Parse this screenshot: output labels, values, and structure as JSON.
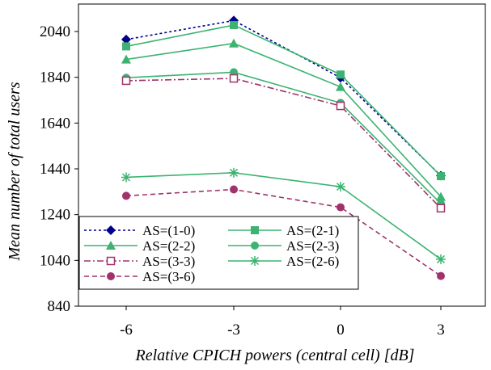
{
  "chart_data": {
    "type": "line",
    "title": "",
    "xlabel": "Relative CPICH powers (central cell) [dB]",
    "ylabel": "Mean number of total users",
    "x": [
      -6,
      -3,
      0,
      3
    ],
    "x_tick_labels": [
      "-6",
      "-3",
      "0",
      "3"
    ],
    "y_tick_labels": [
      "840",
      "1040",
      "1240",
      "1440",
      "1640",
      "1840",
      "2040"
    ],
    "y_ticks": [
      840,
      1040,
      1240,
      1440,
      1640,
      1840,
      2040
    ],
    "ylim": [
      840,
      2160
    ],
    "grid": false,
    "legend_position": "bottom-left",
    "series": [
      {
        "name": "AS=(1-0)",
        "values": [
          2005,
          2088,
          1838,
          1410
        ],
        "color": "#00008b",
        "dash": "dot",
        "marker": "diamond"
      },
      {
        "name": "AS=(2-1)",
        "values": [
          1975,
          2068,
          1852,
          1408
        ],
        "color": "#3cb371",
        "dash": "solid",
        "marker": "square"
      },
      {
        "name": "AS=(2-2)",
        "values": [
          1918,
          1988,
          1798,
          1318
        ],
        "color": "#3cb371",
        "dash": "solid",
        "marker": "triangle"
      },
      {
        "name": "AS=(2-3)",
        "values": [
          1838,
          1862,
          1728,
          1288
        ],
        "color": "#3cb371",
        "dash": "solid",
        "marker": "circle"
      },
      {
        "name": "AS=(3-3)",
        "values": [
          1825,
          1835,
          1715,
          1268
        ],
        "color": "#a0336b",
        "dash": "dashdot",
        "marker": "square-open"
      },
      {
        "name": "AS=(2-6)",
        "values": [
          1403,
          1423,
          1362,
          1045
        ],
        "color": "#3cb371",
        "dash": "solid",
        "marker": "star"
      },
      {
        "name": "AS=(3-6)",
        "values": [
          1322,
          1350,
          1272,
          972
        ],
        "color": "#a0336b",
        "dash": "dash",
        "marker": "circle"
      }
    ]
  }
}
